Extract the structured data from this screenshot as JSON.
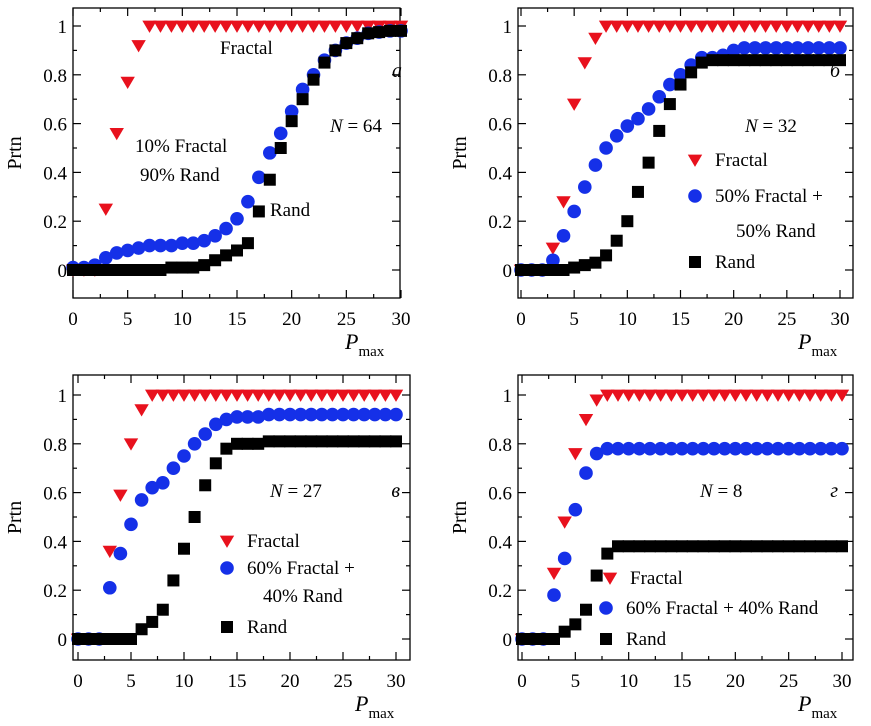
{
  "colors": {
    "fractal": "#e8111d",
    "mixed": "#1530e8",
    "rand": "#000000"
  },
  "chart_data": [
    {
      "type": "scatter",
      "panel_letter": "а",
      "annotation": "N = 64",
      "ylabel": "Prtn",
      "xlabel": "P",
      "xlabel_sub": "max",
      "xlim": [
        0,
        30
      ],
      "ylim": [
        0,
        1
      ],
      "xticks": [
        "0",
        "5",
        "10",
        "15",
        "20",
        "25",
        "30"
      ],
      "yticks": [
        "0",
        "0.2",
        "0.4",
        "0.6",
        "0.8",
        "1"
      ],
      "series": [
        {
          "name": "Fractal",
          "marker": "triangle",
          "x": [
            0,
            1,
            2,
            3,
            4,
            5,
            6,
            7,
            8,
            9,
            10,
            11,
            12,
            13,
            14,
            15,
            16,
            17,
            18,
            19,
            20,
            21,
            22,
            23,
            24,
            25,
            26,
            27,
            28,
            29,
            30
          ],
          "y": [
            0,
            0,
            0,
            0.25,
            0.56,
            0.77,
            0.92,
            1,
            1,
            1,
            1,
            1,
            1,
            1,
            1,
            1,
            1,
            1,
            1,
            1,
            1,
            1,
            1,
            1,
            1,
            1,
            1,
            1,
            1,
            1,
            1
          ]
        },
        {
          "name": "10% Fractal 90% Rand",
          "marker": "circle",
          "x": [
            0,
            1,
            2,
            3,
            4,
            5,
            6,
            7,
            8,
            9,
            10,
            11,
            12,
            13,
            14,
            15,
            16,
            17,
            18,
            19,
            20,
            21,
            22,
            23,
            24,
            25,
            26,
            27,
            28,
            29,
            30
          ],
          "y": [
            0.01,
            0.01,
            0.02,
            0.05,
            0.07,
            0.08,
            0.09,
            0.1,
            0.1,
            0.1,
            0.11,
            0.11,
            0.12,
            0.14,
            0.17,
            0.21,
            0.28,
            0.38,
            0.48,
            0.56,
            0.65,
            0.74,
            0.8,
            0.86,
            0.9,
            0.93,
            0.95,
            0.97,
            0.975,
            0.98,
            0.98
          ]
        },
        {
          "name": "Rand",
          "marker": "square",
          "x": [
            0,
            1,
            2,
            3,
            4,
            5,
            6,
            7,
            8,
            9,
            10,
            11,
            12,
            13,
            14,
            15,
            16,
            17,
            18,
            19,
            20,
            21,
            22,
            23,
            24,
            25,
            26,
            27,
            28,
            29,
            30
          ],
          "y": [
            0,
            0,
            0,
            0,
            0,
            0,
            0,
            0,
            0,
            0.01,
            0.01,
            0.01,
            0.02,
            0.04,
            0.06,
            0.08,
            0.11,
            0.24,
            0.37,
            0.5,
            0.61,
            0.7,
            0.78,
            0.85,
            0.9,
            0.93,
            0.95,
            0.97,
            0.975,
            0.98,
            0.98
          ]
        }
      ],
      "labels": [
        {
          "text": "Fractal"
        },
        {
          "text": "10% Fractal"
        },
        {
          "text": "90% Rand"
        },
        {
          "text": "Rand"
        }
      ]
    },
    {
      "type": "scatter",
      "panel_letter": "б",
      "annotation": "N = 32",
      "ylabel": "Prtn",
      "xlabel": "P",
      "xlabel_sub": "max",
      "xlim": [
        0,
        30
      ],
      "ylim": [
        0,
        1
      ],
      "xticks": [
        "0",
        "5",
        "10",
        "15",
        "20",
        "25",
        "30"
      ],
      "yticks": [
        "0",
        "0.2",
        "0.4",
        "0.6",
        "0.8",
        "1"
      ],
      "series": [
        {
          "name": "Fractal",
          "marker": "triangle",
          "x": [
            0,
            1,
            2,
            3,
            4,
            5,
            6,
            7,
            8,
            9,
            10,
            11,
            12,
            13,
            14,
            15,
            16,
            17,
            18,
            19,
            20,
            21,
            22,
            23,
            24,
            25,
            26,
            27,
            28,
            29,
            30
          ],
          "y": [
            0,
            0,
            0,
            0.09,
            0.28,
            0.68,
            0.85,
            0.95,
            1,
            1,
            1,
            1,
            1,
            1,
            1,
            1,
            1,
            1,
            1,
            1,
            1,
            1,
            1,
            1,
            1,
            1,
            1,
            1,
            1,
            1,
            1
          ]
        },
        {
          "name": "50% Fractal + 50% Rand",
          "marker": "circle",
          "x": [
            0,
            1,
            2,
            3,
            4,
            5,
            6,
            7,
            8,
            9,
            10,
            11,
            12,
            13,
            14,
            15,
            16,
            17,
            18,
            19,
            20,
            21,
            22,
            23,
            24,
            25,
            26,
            27,
            28,
            29,
            30
          ],
          "y": [
            0,
            0,
            0,
            0.04,
            0.14,
            0.24,
            0.34,
            0.43,
            0.5,
            0.55,
            0.59,
            0.62,
            0.66,
            0.71,
            0.76,
            0.8,
            0.84,
            0.87,
            0.87,
            0.88,
            0.9,
            0.91,
            0.91,
            0.91,
            0.91,
            0.91,
            0.91,
            0.91,
            0.91,
            0.91,
            0.91
          ]
        },
        {
          "name": "Rand",
          "marker": "square",
          "x": [
            0,
            1,
            2,
            3,
            4,
            5,
            6,
            7,
            8,
            9,
            10,
            11,
            12,
            13,
            14,
            15,
            16,
            17,
            18,
            19,
            20,
            21,
            22,
            23,
            24,
            25,
            26,
            27,
            28,
            29,
            30
          ],
          "y": [
            0,
            0,
            0,
            0,
            0,
            0.01,
            0.02,
            0.03,
            0.06,
            0.12,
            0.2,
            0.32,
            0.44,
            0.57,
            0.68,
            0.76,
            0.81,
            0.85,
            0.86,
            0.86,
            0.86,
            0.86,
            0.86,
            0.86,
            0.86,
            0.86,
            0.86,
            0.86,
            0.86,
            0.86,
            0.86
          ]
        }
      ],
      "legend": [
        {
          "text": "Fractal",
          "series": 0
        },
        {
          "text": "50% Fractal +",
          "series": 1
        },
        {
          "text": "50% Rand",
          "series": -1
        },
        {
          "text": "Rand",
          "series": 2
        }
      ]
    },
    {
      "type": "scatter",
      "panel_letter": "в",
      "annotation": "N = 27",
      "ylabel": "Prtn",
      "xlabel": "P",
      "xlabel_sub": "max",
      "xlim": [
        0,
        30
      ],
      "ylim": [
        0,
        1
      ],
      "xticks": [
        "0",
        "5",
        "10",
        "15",
        "20",
        "25",
        "30"
      ],
      "yticks": [
        "0",
        "0.2",
        "0.4",
        "0.6",
        "0.8",
        "1"
      ],
      "series": [
        {
          "name": "Fractal",
          "marker": "triangle",
          "x": [
            0,
            1,
            2,
            3,
            4,
            5,
            6,
            7,
            8,
            9,
            10,
            11,
            12,
            13,
            14,
            15,
            16,
            17,
            18,
            19,
            20,
            21,
            22,
            23,
            24,
            25,
            26,
            27,
            28,
            29,
            30
          ],
          "y": [
            0,
            0,
            0,
            0.36,
            0.59,
            0.8,
            0.94,
            1,
            1,
            1,
            1,
            1,
            1,
            1,
            1,
            1,
            1,
            1,
            1,
            1,
            1,
            1,
            1,
            1,
            1,
            1,
            1,
            1,
            1,
            1,
            1
          ]
        },
        {
          "name": "60% Fractal + 40% Rand",
          "marker": "circle",
          "x": [
            0,
            1,
            2,
            3,
            4,
            5,
            6,
            7,
            8,
            9,
            10,
            11,
            12,
            13,
            14,
            15,
            16,
            17,
            18,
            19,
            20,
            21,
            22,
            23,
            24,
            25,
            26,
            27,
            28,
            29,
            30
          ],
          "y": [
            0,
            0,
            0,
            0.21,
            0.35,
            0.47,
            0.57,
            0.62,
            0.64,
            0.7,
            0.75,
            0.8,
            0.84,
            0.88,
            0.9,
            0.91,
            0.91,
            0.91,
            0.92,
            0.92,
            0.92,
            0.92,
            0.92,
            0.92,
            0.92,
            0.92,
            0.92,
            0.92,
            0.92,
            0.92,
            0.92
          ]
        },
        {
          "name": "Rand",
          "marker": "square",
          "x": [
            0,
            1,
            2,
            3,
            4,
            5,
            6,
            7,
            8,
            9,
            10,
            11,
            12,
            13,
            14,
            15,
            16,
            17,
            18,
            19,
            20,
            21,
            22,
            23,
            24,
            25,
            26,
            27,
            28,
            29,
            30
          ],
          "y": [
            0,
            0,
            0,
            0,
            0,
            0,
            0.04,
            0.07,
            0.12,
            0.24,
            0.37,
            0.5,
            0.63,
            0.72,
            0.78,
            0.8,
            0.8,
            0.8,
            0.81,
            0.81,
            0.81,
            0.81,
            0.81,
            0.81,
            0.81,
            0.81,
            0.81,
            0.81,
            0.81,
            0.81,
            0.81
          ]
        }
      ],
      "legend": [
        {
          "text": "Fractal",
          "series": 0
        },
        {
          "text": "60% Fractal +",
          "series": 1
        },
        {
          "text": "40% Rand",
          "series": -1
        },
        {
          "text": "Rand",
          "series": 2
        }
      ]
    },
    {
      "type": "scatter",
      "panel_letter": "г",
      "annotation": "N = 8",
      "ylabel": "Prtn",
      "xlabel": "P",
      "xlabel_sub": "max",
      "xlim": [
        0,
        30
      ],
      "ylim": [
        0,
        1
      ],
      "xticks": [
        "0",
        "5",
        "10",
        "15",
        "20",
        "25",
        "30"
      ],
      "yticks": [
        "0",
        "0.2",
        "0.4",
        "0.6",
        "0.8",
        "1"
      ],
      "series": [
        {
          "name": "Fractal",
          "marker": "triangle",
          "x": [
            0,
            1,
            2,
            3,
            4,
            5,
            6,
            7,
            8,
            9,
            10,
            11,
            12,
            13,
            14,
            15,
            16,
            17,
            18,
            19,
            20,
            21,
            22,
            23,
            24,
            25,
            26,
            27,
            28,
            29,
            30
          ],
          "y": [
            0,
            0,
            0,
            0.27,
            0.48,
            0.76,
            0.9,
            0.98,
            1,
            1,
            1,
            1,
            1,
            1,
            1,
            1,
            1,
            1,
            1,
            1,
            1,
            1,
            1,
            1,
            1,
            1,
            1,
            1,
            1,
            1,
            1
          ]
        },
        {
          "name": "60% Fractal + 40% Rand",
          "marker": "circle",
          "x": [
            0,
            1,
            2,
            3,
            4,
            5,
            6,
            7,
            8,
            9,
            10,
            11,
            12,
            13,
            14,
            15,
            16,
            17,
            18,
            19,
            20,
            21,
            22,
            23,
            24,
            25,
            26,
            27,
            28,
            29,
            30
          ],
          "y": [
            0,
            0,
            0,
            0.18,
            0.33,
            0.53,
            0.68,
            0.76,
            0.78,
            0.78,
            0.78,
            0.78,
            0.78,
            0.78,
            0.78,
            0.78,
            0.78,
            0.78,
            0.78,
            0.78,
            0.78,
            0.78,
            0.78,
            0.78,
            0.78,
            0.78,
            0.78,
            0.78,
            0.78,
            0.78,
            0.78
          ]
        },
        {
          "name": "Rand",
          "marker": "square",
          "x": [
            0,
            1,
            2,
            3,
            4,
            5,
            6,
            7,
            8,
            9,
            10,
            11,
            12,
            13,
            14,
            15,
            16,
            17,
            18,
            19,
            20,
            21,
            22,
            23,
            24,
            25,
            26,
            27,
            28,
            29,
            30
          ],
          "y": [
            0,
            0,
            0,
            0,
            0.03,
            0.06,
            0.12,
            0.26,
            0.35,
            0.38,
            0.38,
            0.38,
            0.38,
            0.38,
            0.38,
            0.38,
            0.38,
            0.38,
            0.38,
            0.38,
            0.38,
            0.38,
            0.38,
            0.38,
            0.38,
            0.38,
            0.38,
            0.38,
            0.38,
            0.38,
            0.38
          ]
        }
      ],
      "legend": [
        {
          "text": "Fractal",
          "series": 0
        },
        {
          "text": "60% Fractal + 40% Rand",
          "series": 1
        },
        {
          "text": "Rand",
          "series": 2
        }
      ]
    }
  ]
}
